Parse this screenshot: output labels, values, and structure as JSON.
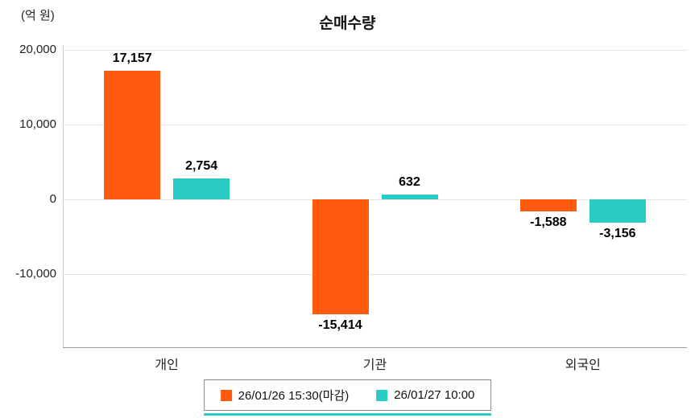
{
  "header": {
    "unit_label": "(억 원)",
    "title": "순매수량"
  },
  "chart_data": {
    "type": "bar",
    "title": "순매수량",
    "ylabel": "(억 원)",
    "categories": [
      "개인",
      "기관",
      "외국인"
    ],
    "series": [
      {
        "name": "26/01/26 15:30(마감)",
        "color": "#ff5a0e",
        "values": [
          17157,
          -15414,
          -1588
        ],
        "labels": [
          "17,157",
          "-15,414",
          "-1,588"
        ]
      },
      {
        "name": "26/01/27 10:00",
        "color": "#29cbc3",
        "values": [
          2754,
          632,
          -3156
        ],
        "labels": [
          "2,754",
          "632",
          "-3,156"
        ]
      }
    ],
    "yticks": [
      20000,
      10000,
      0,
      -10000
    ],
    "ytick_labels": [
      "20,000",
      "10,000",
      "0",
      "-10,000"
    ],
    "ylim": [
      -19800,
      20000
    ],
    "grid": true,
    "legend_position": "bottom"
  }
}
